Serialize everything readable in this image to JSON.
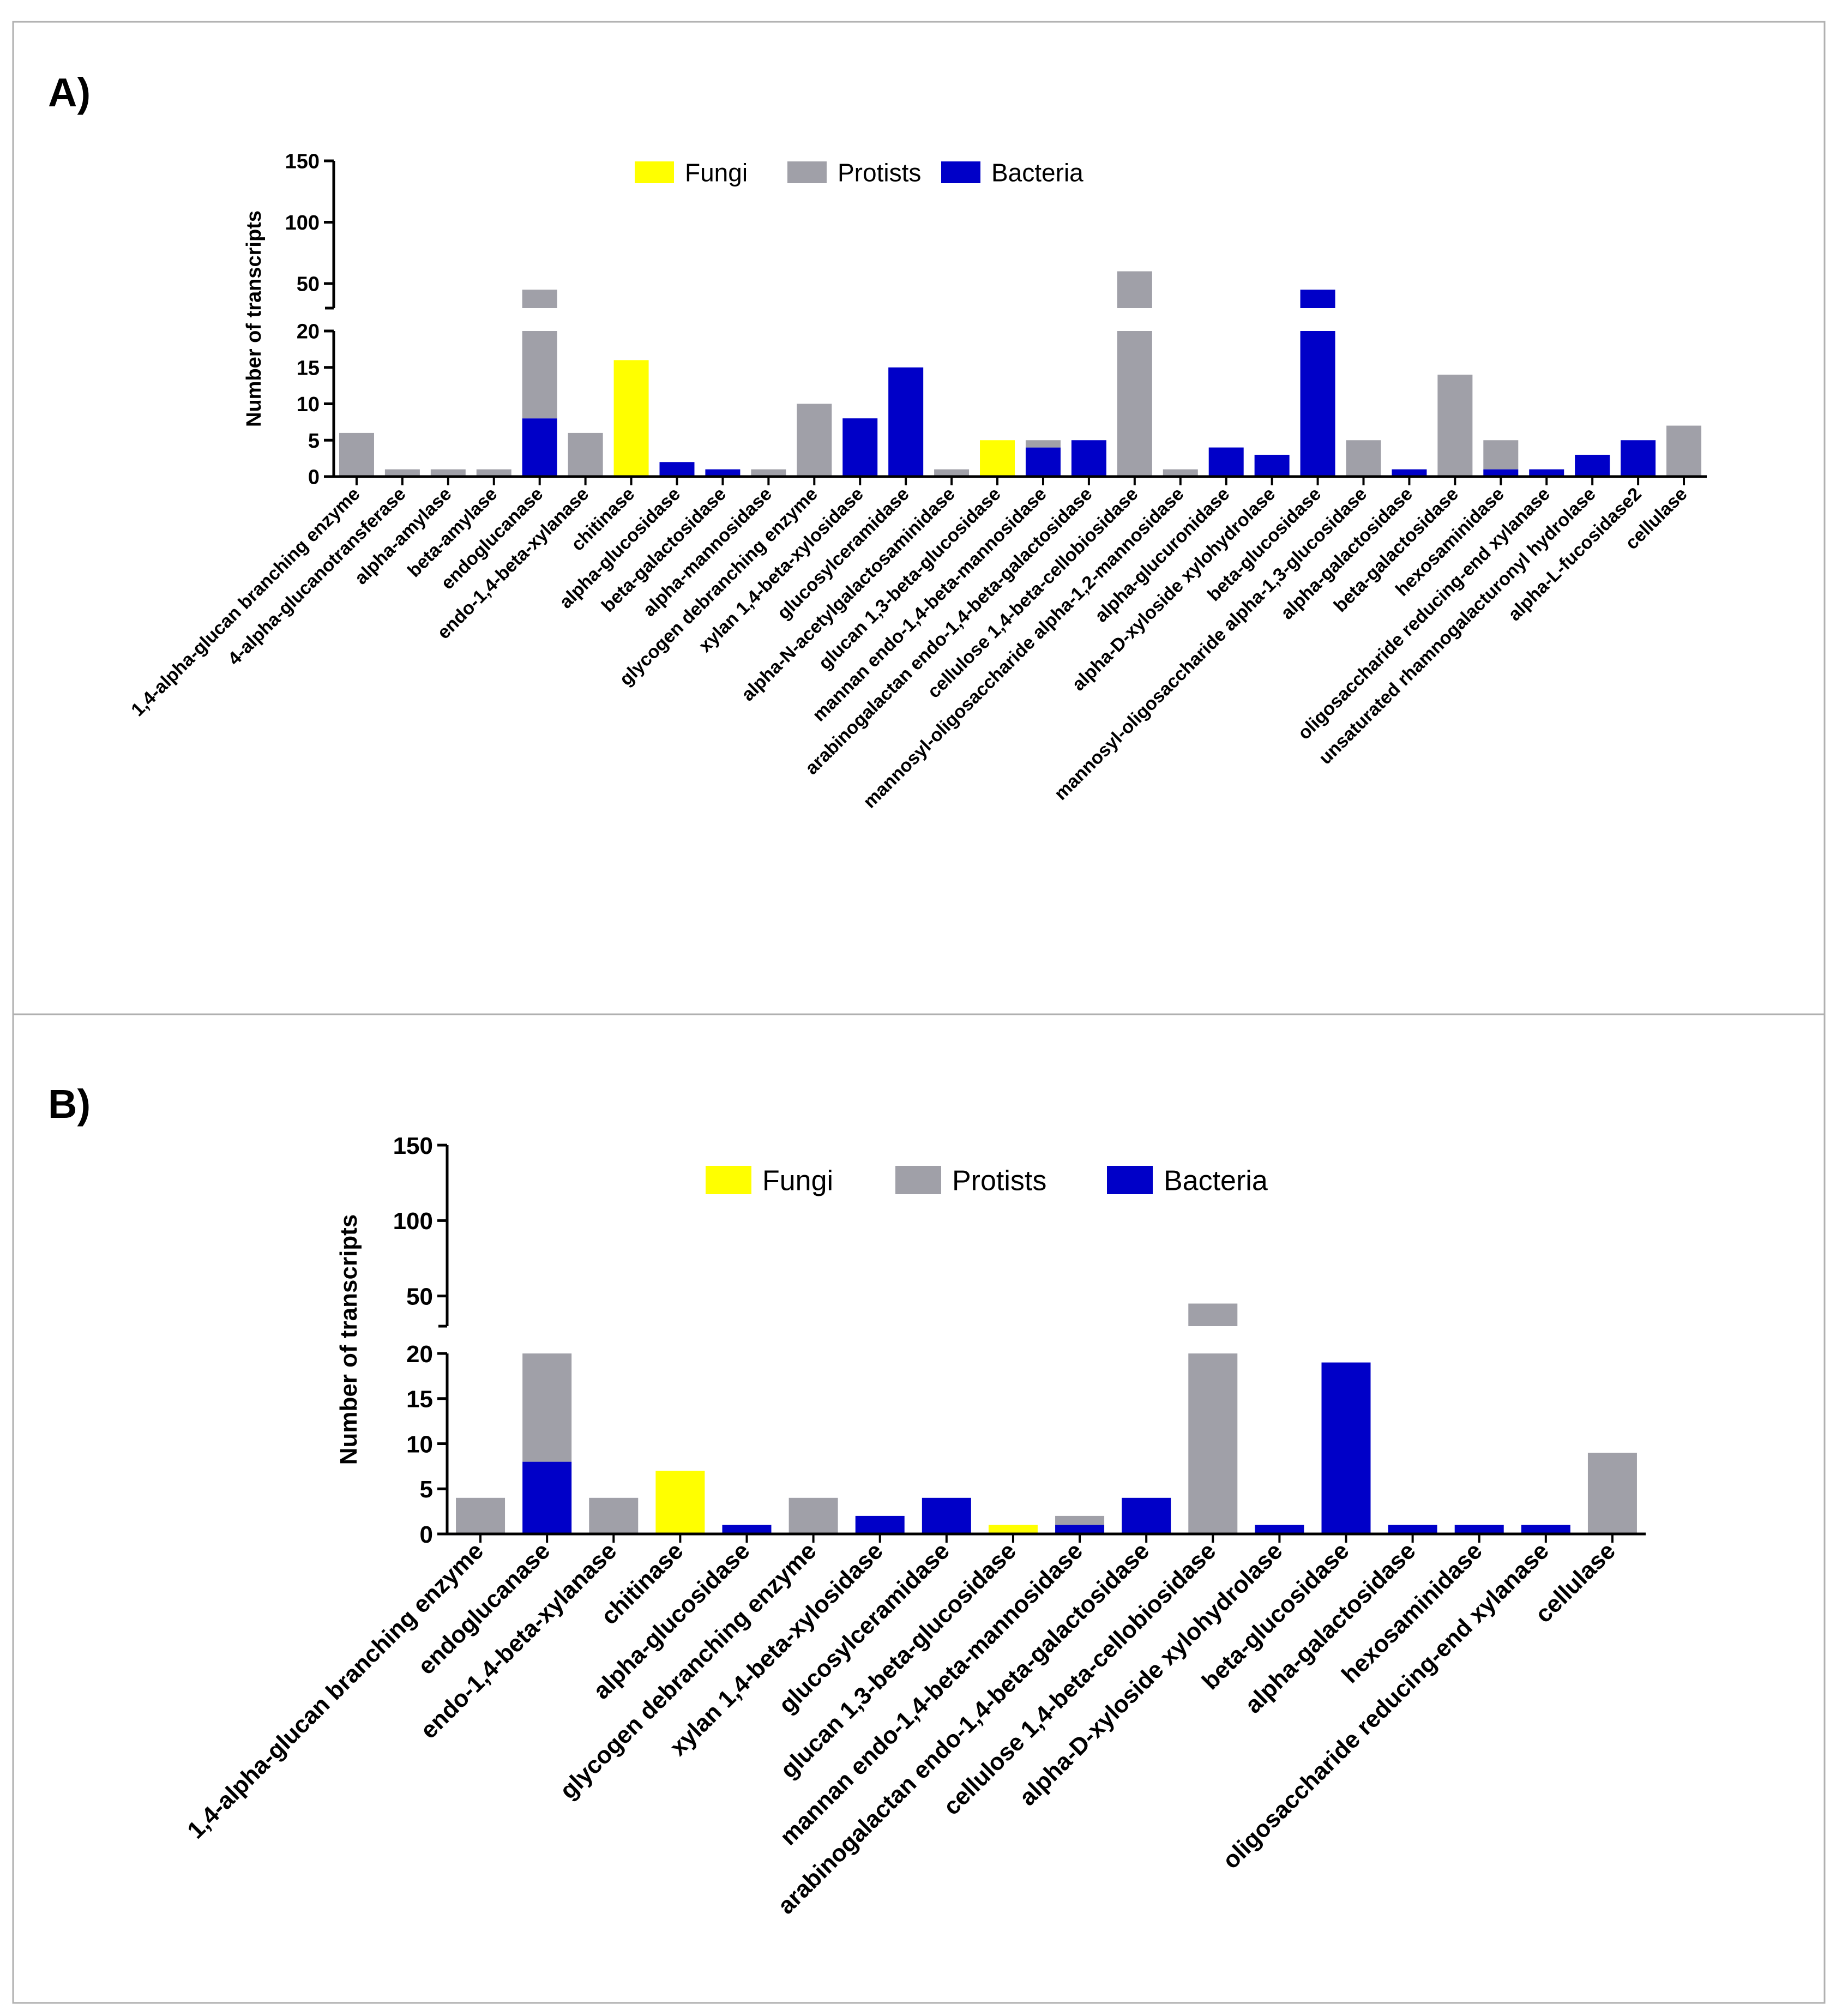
{
  "colors": {
    "fungi": "#FFFF00",
    "protists": "#A0A0A8",
    "bacteria": "#0000C8",
    "axis": "#000000",
    "frame": "#B0B0B0"
  },
  "legend": {
    "fungi": "Fungi",
    "protists": "Protists",
    "bacteria": "Bacteria"
  },
  "chart_data": [
    {
      "panel_label": "A)",
      "type": "bar",
      "stacked": true,
      "ylabel": "Number of transcripts",
      "y_axis_segments": {
        "lower": [
          0,
          20
        ],
        "upper": [
          30,
          150
        ],
        "break": true
      },
      "lower_ticks": [
        "0",
        "5",
        "10",
        "15",
        "20"
      ],
      "upper_ticks": [
        "50",
        "100",
        "150"
      ],
      "legend_position": "top-center",
      "categories": [
        "1,4-alpha-glucan branching enzyme",
        "4-alpha-glucanotransferase",
        "alpha-amylase",
        "beta-amylase",
        "endoglucanase",
        "endo-1,4-beta-xylanase",
        "chitinase",
        "alpha-glucosidase",
        "beta-galactosidase",
        "alpha-mannosidase",
        "glycogen debranching enzyme",
        "xylan 1,4-beta-xylosidase",
        "glucosylceramidase",
        "alpha-N-acetylgalactosaminidase",
        "glucan 1,3-beta-glucosidase",
        "mannan endo-1,4-beta-mannosidase",
        "arabinogalactan endo-1,4-beta-galactosidase",
        "cellulose 1,4-beta-cellobiosidase",
        "mannosyl-oligosaccharide alpha-1,2-mannosidase",
        "alpha-glucuronidase",
        "alpha-D-xyloside xylohydrolase",
        "beta-glucosidase",
        "mannosyl-oligosaccharide alpha-1,3-glucosidase",
        "alpha-galactosidase",
        "beta-galactosidase",
        "hexosaminidase",
        "oligosaccharide reducing-end xylanase",
        "unsaturated rhamnogalacturonyl hydrolase",
        "alpha-L-fucosidase2",
        "cellulase"
      ],
      "series": [
        {
          "name": "Fungi",
          "values": [
            0,
            0,
            0,
            0,
            0,
            0,
            16,
            0,
            0,
            0,
            0,
            0,
            0,
            0,
            5,
            0,
            0,
            0,
            0,
            0,
            0,
            0,
            0,
            0,
            0,
            0,
            0,
            0,
            0,
            0
          ]
        },
        {
          "name": "Bacteria",
          "values": [
            0,
            0,
            0,
            0,
            8,
            0,
            0,
            2,
            1,
            0,
            0,
            8,
            15,
            0,
            0,
            4,
            5,
            0,
            0,
            4,
            3,
            45,
            0,
            1,
            0,
            1,
            1,
            3,
            5,
            0
          ]
        },
        {
          "name": "Protists",
          "values": [
            6,
            1,
            1,
            1,
            37,
            6,
            0,
            0,
            0,
            1,
            10,
            0,
            0,
            1,
            0,
            1,
            0,
            60,
            1,
            0,
            0,
            0,
            5,
            0,
            14,
            4,
            0,
            0,
            0,
            7
          ]
        }
      ]
    },
    {
      "panel_label": "B)",
      "type": "bar",
      "stacked": true,
      "ylabel": "Number of transcripts",
      "y_axis_segments": {
        "lower": [
          0,
          20
        ],
        "upper": [
          30,
          150
        ],
        "break": true
      },
      "lower_ticks": [
        "0",
        "5",
        "10",
        "15",
        "20"
      ],
      "upper_ticks": [
        "50",
        "100",
        "150"
      ],
      "legend_position": "top-center",
      "categories": [
        "1,4-alpha-glucan branching enzyme",
        "endoglucanase",
        "endo-1,4-beta-xylanase",
        "chitinase",
        "alpha-glucosidase",
        "glycogen debranching enzyme",
        "xylan 1,4-beta-xylosidase",
        "glucosylceramidase",
        "glucan 1,3-beta-glucosidase",
        "mannan endo-1,4-beta-mannosidase",
        "arabinogalactan endo-1,4-beta-galactosidase",
        "cellulose 1,4-beta-cellobiosidase",
        "alpha-D-xyloside xylohydrolase",
        "beta-glucosidase",
        "alpha-galactosidase",
        "hexosaminidase",
        "oligosaccharide reducing-end xylanase",
        "cellulase"
      ],
      "series": [
        {
          "name": "Fungi",
          "values": [
            0,
            0,
            0,
            7,
            0,
            0,
            0,
            0,
            1,
            0,
            0,
            0,
            0,
            0,
            0,
            0,
            0,
            0
          ]
        },
        {
          "name": "Bacteria",
          "values": [
            0,
            8,
            0,
            0,
            1,
            0,
            2,
            4,
            0,
            1,
            4,
            0,
            1,
            19,
            1,
            1,
            1,
            0
          ]
        },
        {
          "name": "Protists",
          "values": [
            4,
            12,
            4,
            0,
            0,
            4,
            0,
            0,
            0,
            1,
            0,
            45,
            0,
            0,
            0,
            0,
            0,
            9
          ]
        }
      ]
    }
  ]
}
